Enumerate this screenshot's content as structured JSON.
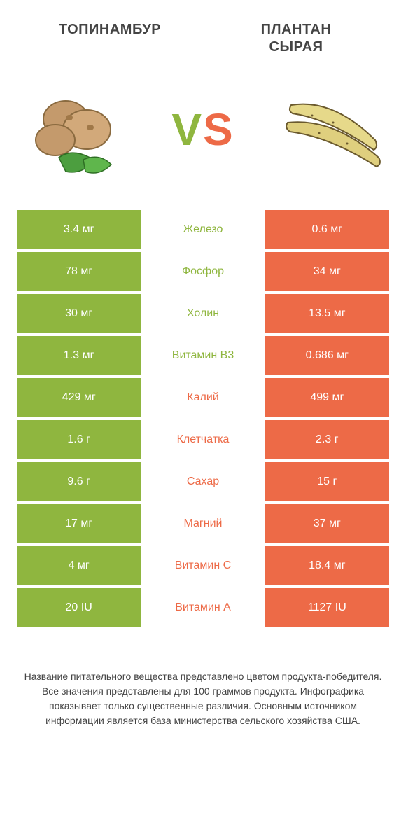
{
  "colors": {
    "green": "#8fb63f",
    "orange": "#ed6a47",
    "text": "#444444",
    "white": "#ffffff"
  },
  "header": {
    "left_title": "ТОПИНАМБУР",
    "right_title_line1": "ПЛАНТАН",
    "right_title_line2": "СЫРАЯ"
  },
  "vs_label": {
    "v": "V",
    "s": "S"
  },
  "rows": [
    {
      "left": "3.4 мг",
      "label": "Железо",
      "right": "0.6 мг",
      "winner": "left"
    },
    {
      "left": "78 мг",
      "label": "Фосфор",
      "right": "34 мг",
      "winner": "left"
    },
    {
      "left": "30 мг",
      "label": "Холин",
      "right": "13.5 мг",
      "winner": "left"
    },
    {
      "left": "1.3 мг",
      "label": "Витамин B3",
      "right": "0.686 мг",
      "winner": "left"
    },
    {
      "left": "429 мг",
      "label": "Калий",
      "right": "499 мг",
      "winner": "right"
    },
    {
      "left": "1.6 г",
      "label": "Клетчатка",
      "right": "2.3 г",
      "winner": "right"
    },
    {
      "left": "9.6 г",
      "label": "Сахар",
      "right": "15 г",
      "winner": "right"
    },
    {
      "left": "17 мг",
      "label": "Магний",
      "right": "37 мг",
      "winner": "right"
    },
    {
      "left": "4 мг",
      "label": "Витамин C",
      "right": "18.4 мг",
      "winner": "right"
    },
    {
      "left": "20 IU",
      "label": "Витамин A",
      "right": "1127 IU",
      "winner": "right"
    }
  ],
  "footnote_lines": [
    "Название питательного вещества представлено цветом продукта-победителя.",
    "Все значения представлены для 100 граммов продукта.",
    "Инфографика показывает только существенные различия.",
    "Основным источником информации является база министерства сельского хозяйства США."
  ]
}
